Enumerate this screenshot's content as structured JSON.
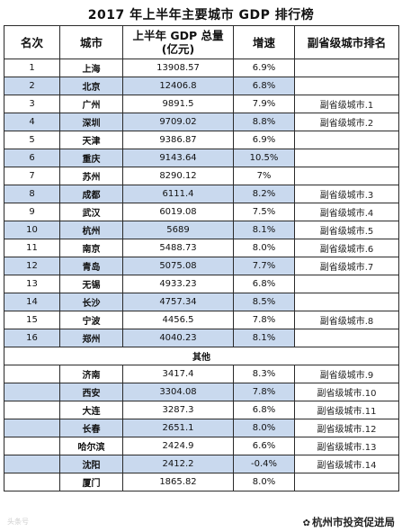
{
  "title": "2017 年上半年主要城市 GDP 排行榜",
  "headers": {
    "rank": "名次",
    "city": "城市",
    "gdp_line1": "上半年 GDP 总量",
    "gdp_line2": "(亿元)",
    "growth": "增速",
    "sub_rank": "副省级城市排名"
  },
  "rows": [
    {
      "rank": "1",
      "city": "上海",
      "gdp": "13908.57",
      "growth": "6.9%",
      "sub_rank": ""
    },
    {
      "rank": "2",
      "city": "北京",
      "gdp": "12406.8",
      "growth": "6.8%",
      "sub_rank": ""
    },
    {
      "rank": "3",
      "city": "广州",
      "gdp": "9891.5",
      "growth": "7.9%",
      "sub_rank": "副省级城市.1"
    },
    {
      "rank": "4",
      "city": "深圳",
      "gdp": "9709.02",
      "growth": "8.8%",
      "sub_rank": "副省级城市.2"
    },
    {
      "rank": "5",
      "city": "天津",
      "gdp": "9386.87",
      "growth": "6.9%",
      "sub_rank": ""
    },
    {
      "rank": "6",
      "city": "重庆",
      "gdp": "9143.64",
      "growth": "10.5%",
      "sub_rank": ""
    },
    {
      "rank": "7",
      "city": "苏州",
      "gdp": "8290.12",
      "growth": "7%",
      "sub_rank": ""
    },
    {
      "rank": "8",
      "city": "成都",
      "gdp": "6111.4",
      "growth": "8.2%",
      "sub_rank": "副省级城市.3"
    },
    {
      "rank": "9",
      "city": "武汉",
      "gdp": "6019.08",
      "growth": "7.5%",
      "sub_rank": "副省级城市.4"
    },
    {
      "rank": "10",
      "city": "杭州",
      "gdp": "5689",
      "growth": "8.1%",
      "sub_rank": "副省级城市.5"
    },
    {
      "rank": "11",
      "city": "南京",
      "gdp": "5488.73",
      "growth": "8.0%",
      "sub_rank": "副省级城市.6"
    },
    {
      "rank": "12",
      "city": "青岛",
      "gdp": "5075.08",
      "growth": "7.7%",
      "sub_rank": "副省级城市.7"
    },
    {
      "rank": "13",
      "city": "无锡",
      "gdp": "4933.23",
      "growth": "6.8%",
      "sub_rank": ""
    },
    {
      "rank": "14",
      "city": "长沙",
      "gdp": "4757.34",
      "growth": "8.5%",
      "sub_rank": ""
    },
    {
      "rank": "15",
      "city": "宁波",
      "gdp": "4456.5",
      "growth": "7.8%",
      "sub_rank": "副省级城市.8"
    },
    {
      "rank": "16",
      "city": "郑州",
      "gdp": "4040.23",
      "growth": "8.1%",
      "sub_rank": ""
    }
  ],
  "other_label": "其他",
  "other_rows": [
    {
      "rank": "",
      "city": "济南",
      "gdp": "3417.4",
      "growth": "8.3%",
      "sub_rank": "副省级城市.9"
    },
    {
      "rank": "",
      "city": "西安",
      "gdp": "3304.08",
      "growth": "7.8%",
      "sub_rank": "副省级城市.10"
    },
    {
      "rank": "",
      "city": "大连",
      "gdp": "3287.3",
      "growth": "6.8%",
      "sub_rank": "副省级城市.11"
    },
    {
      "rank": "",
      "city": "长春",
      "gdp": "2651.1",
      "growth": "8.0%",
      "sub_rank": "副省级城市.12"
    },
    {
      "rank": "",
      "city": "哈尔滨",
      "gdp": "2424.9",
      "growth": "6.6%",
      "sub_rank": "副省级城市.13"
    },
    {
      "rank": "",
      "city": "沈阳",
      "gdp": "2412.2",
      "growth": "-0.4%",
      "sub_rank": "副省级城市.14"
    },
    {
      "rank": "",
      "city": "厦门",
      "gdp": "1865.82",
      "growth": "8.0%",
      "sub_rank": ""
    }
  ],
  "watermark": "头条号",
  "account": "杭州市投资促进局",
  "icon": "wechat-icon",
  "colors": {
    "row_shade": "#c9d9ee",
    "border": "#2a2a2a"
  }
}
